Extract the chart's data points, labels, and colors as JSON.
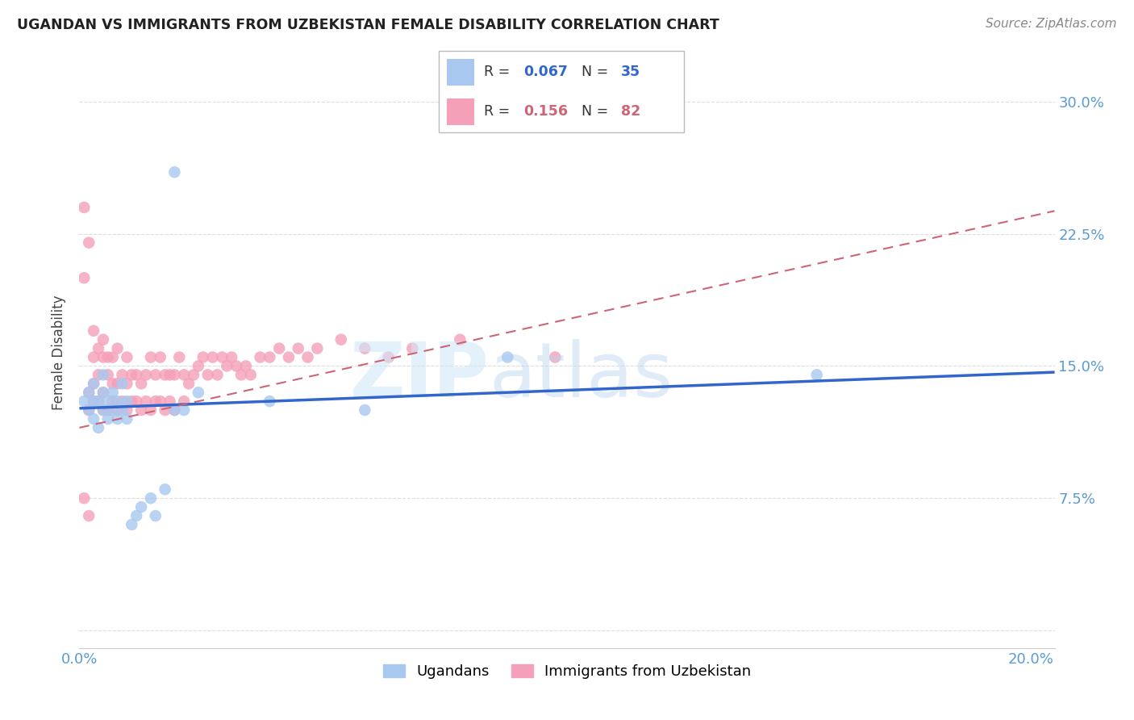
{
  "title": "UGANDAN VS IMMIGRANTS FROM UZBEKISTAN FEMALE DISABILITY CORRELATION CHART",
  "source": "Source: ZipAtlas.com",
  "ylabel": "Female Disability",
  "yticks": [
    0.0,
    0.075,
    0.15,
    0.225,
    0.3
  ],
  "ytick_labels": [
    "",
    "7.5%",
    "15.0%",
    "22.5%",
    "30.0%"
  ],
  "xticks": [
    0.0,
    0.05,
    0.1,
    0.15,
    0.2
  ],
  "xtick_labels": [
    "0.0%",
    "",
    "",
    "",
    "20.0%"
  ],
  "xlim": [
    0.0,
    0.205
  ],
  "ylim": [
    -0.01,
    0.325
  ],
  "ugandan_R": 0.067,
  "ugandan_N": 35,
  "uzbek_R": 0.156,
  "uzbek_N": 82,
  "ugandan_color": "#a8c8f0",
  "uzbek_color": "#f4a0b8",
  "ugandan_line_color": "#3366cc",
  "uzbek_line_color": "#cc6677",
  "tick_color": "#5b9bd5",
  "grid_color": "#dddddd",
  "ugandan_x": [
    0.001,
    0.002,
    0.002,
    0.003,
    0.003,
    0.003,
    0.004,
    0.004,
    0.005,
    0.005,
    0.005,
    0.006,
    0.006,
    0.007,
    0.007,
    0.008,
    0.008,
    0.009,
    0.009,
    0.01,
    0.01,
    0.011,
    0.012,
    0.013,
    0.015,
    0.016,
    0.018,
    0.02,
    0.022,
    0.025,
    0.04,
    0.06,
    0.09,
    0.155,
    0.02
  ],
  "ugandan_y": [
    0.13,
    0.125,
    0.135,
    0.12,
    0.13,
    0.14,
    0.115,
    0.13,
    0.125,
    0.135,
    0.145,
    0.12,
    0.13,
    0.125,
    0.135,
    0.12,
    0.13,
    0.125,
    0.14,
    0.12,
    0.13,
    0.06,
    0.065,
    0.07,
    0.075,
    0.065,
    0.08,
    0.125,
    0.125,
    0.135,
    0.13,
    0.125,
    0.155,
    0.145,
    0.26
  ],
  "uzbek_x": [
    0.001,
    0.001,
    0.002,
    0.002,
    0.002,
    0.003,
    0.003,
    0.003,
    0.003,
    0.004,
    0.004,
    0.004,
    0.005,
    0.005,
    0.005,
    0.005,
    0.006,
    0.006,
    0.006,
    0.007,
    0.007,
    0.007,
    0.008,
    0.008,
    0.008,
    0.009,
    0.009,
    0.01,
    0.01,
    0.01,
    0.011,
    0.011,
    0.012,
    0.012,
    0.013,
    0.013,
    0.014,
    0.014,
    0.015,
    0.015,
    0.016,
    0.016,
    0.017,
    0.017,
    0.018,
    0.018,
    0.019,
    0.019,
    0.02,
    0.02,
    0.021,
    0.022,
    0.022,
    0.023,
    0.024,
    0.025,
    0.026,
    0.027,
    0.028,
    0.029,
    0.03,
    0.031,
    0.032,
    0.033,
    0.034,
    0.035,
    0.036,
    0.038,
    0.04,
    0.042,
    0.044,
    0.046,
    0.048,
    0.05,
    0.055,
    0.06,
    0.065,
    0.07,
    0.08,
    0.1,
    0.001,
    0.002
  ],
  "uzbek_y": [
    0.2,
    0.24,
    0.125,
    0.135,
    0.22,
    0.13,
    0.14,
    0.155,
    0.17,
    0.13,
    0.145,
    0.16,
    0.125,
    0.135,
    0.155,
    0.165,
    0.125,
    0.145,
    0.155,
    0.13,
    0.14,
    0.155,
    0.125,
    0.14,
    0.16,
    0.13,
    0.145,
    0.125,
    0.14,
    0.155,
    0.13,
    0.145,
    0.13,
    0.145,
    0.125,
    0.14,
    0.13,
    0.145,
    0.125,
    0.155,
    0.13,
    0.145,
    0.13,
    0.155,
    0.125,
    0.145,
    0.13,
    0.145,
    0.125,
    0.145,
    0.155,
    0.13,
    0.145,
    0.14,
    0.145,
    0.15,
    0.155,
    0.145,
    0.155,
    0.145,
    0.155,
    0.15,
    0.155,
    0.15,
    0.145,
    0.15,
    0.145,
    0.155,
    0.155,
    0.16,
    0.155,
    0.16,
    0.155,
    0.16,
    0.165,
    0.16,
    0.155,
    0.16,
    0.165,
    0.155,
    0.075,
    0.065
  ]
}
